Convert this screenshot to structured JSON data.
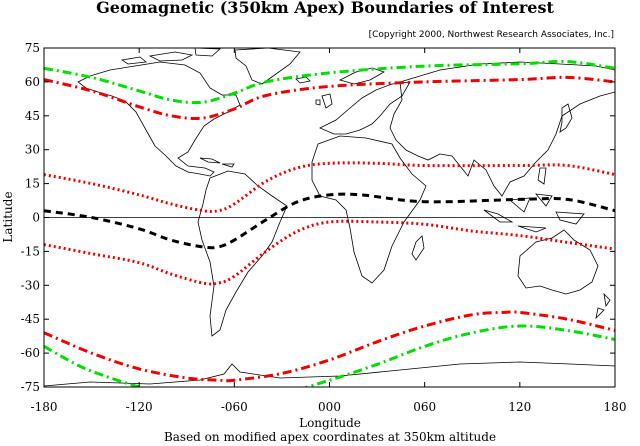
{
  "title": "Geomagnetic (350km Apex) Boundaries of Interest",
  "copyright": "[Copyright 2000, Northwest Research Associates, Inc.]",
  "caption": "Based on modified apex coordinates at 350km altitude",
  "chart_data": {
    "type": "line",
    "xlabel": "Longitude",
    "ylabel": "Latitude",
    "xlim": [
      -180,
      180
    ],
    "ylim": [
      -75,
      75
    ],
    "xticks": [
      {
        "value": -180,
        "label": "-180"
      },
      {
        "value": -120,
        "label": "-120"
      },
      {
        "value": -60,
        "label": "-060"
      },
      {
        "value": 0,
        "label": "000"
      },
      {
        "value": 60,
        "label": "060"
      },
      {
        "value": 120,
        "label": "120"
      },
      {
        "value": 180,
        "label": "180"
      }
    ],
    "yticks": [
      {
        "value": 75,
        "label": "75"
      },
      {
        "value": 60,
        "label": "60"
      },
      {
        "value": 45,
        "label": "45"
      },
      {
        "value": 30,
        "label": "30"
      },
      {
        "value": 15,
        "label": "15"
      },
      {
        "value": 0,
        "label": "0"
      },
      {
        "value": -15,
        "label": "-15"
      },
      {
        "value": -30,
        "label": "-30"
      },
      {
        "value": -45,
        "label": "-45"
      },
      {
        "value": -60,
        "label": "-60"
      },
      {
        "value": -75,
        "label": "-75"
      }
    ],
    "equator_line": 0,
    "series": [
      {
        "id": "north-outer",
        "color": "#00dd00",
        "style": "dashdot",
        "x": [
          -180,
          -150,
          -120,
          -100,
          -80,
          -60,
          -40,
          0,
          60,
          120,
          150,
          180
        ],
        "y": [
          66,
          62,
          56,
          52,
          51,
          55,
          60,
          64,
          67,
          68,
          69,
          66
        ]
      },
      {
        "id": "north-inner",
        "color": "#ee0000",
        "style": "dashdot",
        "x": [
          -180,
          -150,
          -120,
          -100,
          -80,
          -60,
          -40,
          0,
          60,
          120,
          150,
          180
        ],
        "y": [
          61,
          56,
          49,
          45,
          44,
          48,
          54,
          58,
          60,
          61,
          62,
          60
        ]
      },
      {
        "id": "north-low",
        "color": "#ee0000",
        "style": "dotted",
        "x": [
          -180,
          -150,
          -120,
          -100,
          -80,
          -70,
          -60,
          -40,
          -20,
          0,
          30,
          60,
          120,
          150,
          180
        ],
        "y": [
          19,
          15,
          10,
          6,
          3,
          3,
          6,
          16,
          22,
          24,
          24,
          23,
          23,
          23,
          19
        ]
      },
      {
        "id": "equator-mag",
        "color": "#000000",
        "style": "dashed",
        "x": [
          -180,
          -150,
          -120,
          -100,
          -80,
          -70,
          -60,
          -40,
          -20,
          0,
          20,
          60,
          120,
          150,
          180
        ],
        "y": [
          3,
          0,
          -5,
          -10,
          -13,
          -13,
          -10,
          -1,
          7,
          10,
          10,
          7,
          8,
          8,
          3
        ]
      },
      {
        "id": "south-low",
        "color": "#ee0000",
        "style": "dotted",
        "x": [
          -180,
          -150,
          -120,
          -100,
          -80,
          -70,
          -60,
          -40,
          -20,
          0,
          30,
          60,
          90,
          120,
          150,
          180
        ],
        "y": [
          -12,
          -16,
          -20,
          -25,
          -29,
          -29,
          -26,
          -15,
          -6,
          -2,
          -2,
          -3,
          -6,
          -8,
          -11,
          -14
        ]
      },
      {
        "id": "south-inner",
        "color": "#ee0000",
        "style": "dashdot",
        "x": [
          -180,
          -150,
          -120,
          -90,
          -70,
          -60,
          -30,
          0,
          30,
          60,
          90,
          110,
          120,
          150,
          180
        ],
        "y": [
          -51,
          -60,
          -67,
          -71,
          -72,
          -72,
          -69,
          -63,
          -55,
          -48,
          -43,
          -42,
          -42,
          -45,
          -50
        ]
      },
      {
        "id": "south-outer",
        "color": "#00dd00",
        "style": "dashdot",
        "x": [
          -180,
          -165,
          -150,
          -120,
          -90,
          -60,
          -30,
          0,
          30,
          60,
          90,
          120,
          150,
          180
        ],
        "y": [
          -57,
          -63,
          -68,
          -75,
          -80,
          -80,
          -78,
          -72,
          -65,
          -57,
          -51,
          -48,
          -50,
          -54
        ]
      }
    ]
  }
}
